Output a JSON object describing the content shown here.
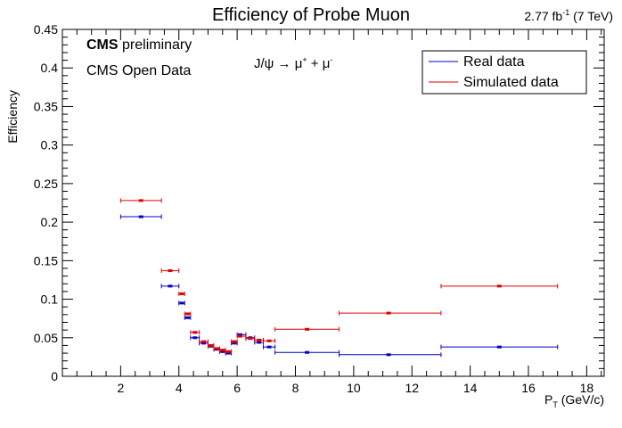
{
  "chart_data": {
    "type": "scatter",
    "title": "Efficiency of Probe Muon",
    "luminosity": {
      "base": "2.77 fb",
      "exponent": "-1",
      "suffix": " (7 TeV)"
    },
    "xlabel": {
      "main": "P",
      "sub": "T",
      "suffix": " (GeV/c)"
    },
    "ylabel": "Efficiency",
    "xlim": [
      0,
      18.6
    ],
    "ylim": [
      0,
      0.45
    ],
    "x_ticks": [
      2,
      4,
      6,
      8,
      10,
      12,
      14,
      16,
      18
    ],
    "x_tick_labels": [
      "2",
      "4",
      "6",
      "8",
      "10",
      "12",
      "14",
      "16",
      "18"
    ],
    "y_ticks": [
      0,
      0.05,
      0.1,
      0.15,
      0.2,
      0.25,
      0.3,
      0.35,
      0.4,
      0.45
    ],
    "y_tick_labels": [
      "0",
      "0.05",
      "0.1",
      "0.15",
      "0.2",
      "0.25",
      "0.3",
      "0.35",
      "0.4",
      "0.45"
    ],
    "annotations": {
      "cms_bold": "CMS",
      "cms_rest": " preliminary",
      "open_data": "CMS Open Data",
      "decay_lhs": "J/ψ → μ",
      "decay_sup1": "+",
      "decay_plus": " + μ",
      "decay_sup2": "-"
    },
    "legend_position": "top-right",
    "series": [
      {
        "name": "Real data",
        "color": "#0000cc",
        "points": [
          {
            "x": 2.7,
            "xlo": 2.0,
            "xhi": 3.4,
            "y": 0.207
          },
          {
            "x": 3.7,
            "xlo": 3.4,
            "xhi": 4.0,
            "y": 0.117
          },
          {
            "x": 4.1,
            "xlo": 4.0,
            "xhi": 4.2,
            "y": 0.095
          },
          {
            "x": 4.3,
            "xlo": 4.2,
            "xhi": 4.4,
            "y": 0.076
          },
          {
            "x": 4.55,
            "xlo": 4.4,
            "xhi": 4.7,
            "y": 0.05
          },
          {
            "x": 4.85,
            "xlo": 4.7,
            "xhi": 5.0,
            "y": 0.043
          },
          {
            "x": 5.1,
            "xlo": 5.0,
            "xhi": 5.2,
            "y": 0.039
          },
          {
            "x": 5.3,
            "xlo": 5.2,
            "xhi": 5.4,
            "y": 0.035
          },
          {
            "x": 5.5,
            "xlo": 5.4,
            "xhi": 5.6,
            "y": 0.032
          },
          {
            "x": 5.7,
            "xlo": 5.6,
            "xhi": 5.8,
            "y": 0.03
          },
          {
            "x": 5.9,
            "xlo": 5.8,
            "xhi": 6.0,
            "y": 0.043
          },
          {
            "x": 6.1,
            "xlo": 6.0,
            "xhi": 6.3,
            "y": 0.054
          },
          {
            "x": 6.45,
            "xlo": 6.3,
            "xhi": 6.6,
            "y": 0.05
          },
          {
            "x": 6.75,
            "xlo": 6.6,
            "xhi": 6.9,
            "y": 0.044
          },
          {
            "x": 7.1,
            "xlo": 6.9,
            "xhi": 7.3,
            "y": 0.038
          },
          {
            "x": 8.4,
            "xlo": 7.3,
            "xhi": 9.5,
            "y": 0.031
          },
          {
            "x": 11.2,
            "xlo": 9.5,
            "xhi": 13.0,
            "y": 0.028
          },
          {
            "x": 15.0,
            "xlo": 13.0,
            "xhi": 17.0,
            "y": 0.038
          }
        ]
      },
      {
        "name": "Simulated data",
        "color": "#e00000",
        "points": [
          {
            "x": 2.7,
            "xlo": 2.0,
            "xhi": 3.4,
            "y": 0.228
          },
          {
            "x": 3.7,
            "xlo": 3.4,
            "xhi": 4.0,
            "y": 0.137
          },
          {
            "x": 4.1,
            "xlo": 4.0,
            "xhi": 4.2,
            "y": 0.107
          },
          {
            "x": 4.3,
            "xlo": 4.2,
            "xhi": 4.4,
            "y": 0.081
          },
          {
            "x": 4.55,
            "xlo": 4.4,
            "xhi": 4.7,
            "y": 0.057
          },
          {
            "x": 4.85,
            "xlo": 4.7,
            "xhi": 5.0,
            "y": 0.045
          },
          {
            "x": 5.1,
            "xlo": 5.0,
            "xhi": 5.2,
            "y": 0.04
          },
          {
            "x": 5.3,
            "xlo": 5.2,
            "xhi": 5.4,
            "y": 0.036
          },
          {
            "x": 5.5,
            "xlo": 5.4,
            "xhi": 5.6,
            "y": 0.034
          },
          {
            "x": 5.7,
            "xlo": 5.6,
            "xhi": 5.8,
            "y": 0.032
          },
          {
            "x": 5.9,
            "xlo": 5.8,
            "xhi": 6.0,
            "y": 0.045
          },
          {
            "x": 6.1,
            "xlo": 6.0,
            "xhi": 6.3,
            "y": 0.052
          },
          {
            "x": 6.45,
            "xlo": 6.3,
            "xhi": 6.6,
            "y": 0.049
          },
          {
            "x": 6.75,
            "xlo": 6.6,
            "xhi": 6.9,
            "y": 0.047
          },
          {
            "x": 7.1,
            "xlo": 6.9,
            "xhi": 7.3,
            "y": 0.046
          },
          {
            "x": 8.4,
            "xlo": 7.3,
            "xhi": 9.5,
            "y": 0.061
          },
          {
            "x": 11.2,
            "xlo": 9.5,
            "xhi": 13.0,
            "y": 0.082
          },
          {
            "x": 15.0,
            "xlo": 13.0,
            "xhi": 17.0,
            "y": 0.117
          }
        ]
      }
    ]
  }
}
